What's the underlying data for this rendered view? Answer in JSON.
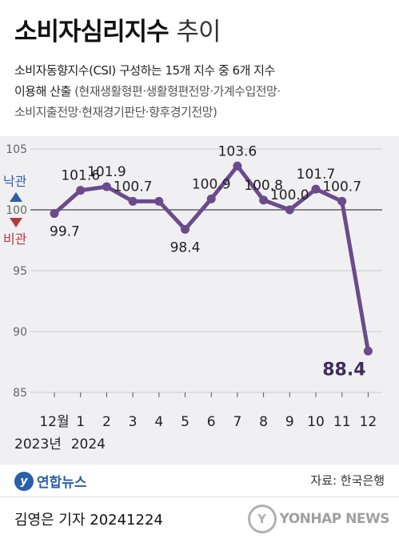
{
  "header": {
    "title": "소비자심리지수",
    "title_suffix": "추이",
    "desc_line1": "소비자동향지수(CSI) 구성하는 15개 지수 중 6개 지수",
    "desc_line2_main": "이용해 산출",
    "desc_line2_paren": "(현재생활형편·생활형편전망·가계수입전망·",
    "desc_line3": "소비지출전망·현재경기판단·향후경기전망)"
  },
  "chart_data": {
    "type": "line",
    "categories": [
      "12월",
      "1",
      "2",
      "3",
      "4",
      "5",
      "6",
      "7",
      "8",
      "9",
      "10",
      "11",
      "12"
    ],
    "values": [
      99.7,
      101.6,
      101.9,
      100.7,
      100.7,
      98.4,
      100.9,
      103.6,
      100.8,
      100.0,
      101.7,
      100.7,
      88.4
    ],
    "value_labels": [
      "99.7",
      "101.6",
      "101.9",
      "100.7",
      "",
      "98.4",
      "100.9",
      "103.6",
      "100.8",
      "100.0",
      "101.7",
      "100.7",
      "88.4"
    ],
    "y_ticks": [
      "105",
      "100",
      "95",
      "90",
      "85"
    ],
    "ylim": [
      85,
      105
    ],
    "year_labels": [
      "2023년",
      "2024"
    ],
    "reference_line": 100,
    "optimism_label": "낙관",
    "pessimism_label": "비관",
    "colors": {
      "line": "#6a4b8c",
      "last_label": "#3f2a63",
      "up": "#2f5fa6",
      "down": "#b6393f",
      "grid": "#ccccd2"
    }
  },
  "logo": {
    "mark": "y",
    "name": "연합뉴스"
  },
  "source": "자료: 한국은행",
  "footer": {
    "reporter": "김영은 기자  20241224",
    "watermark_mark": "Y",
    "watermark_text": "YONHAP NEWS"
  }
}
